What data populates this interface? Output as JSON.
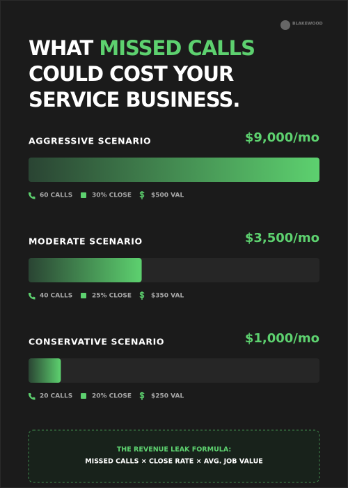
{
  "chart_data": {
    "type": "bar",
    "brand": "BLAKEWOOD",
    "title_parts": [
      "WHAT",
      "MISSED CALLS",
      "COULD COST YOUR",
      "SERVICE BUSINESS."
    ],
    "highlight_color": "#5dd16f",
    "categories": [
      "AGGRESSIVE SCENARIO",
      "MODERATE SCENARIO",
      "CONSERVATIVE SCENARIO"
    ],
    "values": [
      9000,
      3500,
      1000
    ],
    "value_labels": [
      "$9,000/mo",
      "$3,500/mo",
      "$1,000/mo"
    ],
    "color": "#5dd16f",
    "details": [
      [
        "60 CALLS",
        "30% CLOSE",
        "$500 VAL"
      ],
      [
        "40 CALLS",
        "25% CLOSE",
        "$350 VAL"
      ],
      [
        "20 CALLS",
        "20% CLOSE",
        "$250 VAL"
      ]
    ],
    "formula": {
      "title": "THE REVENUE LEAK FORMULA:",
      "text": "MISSED CALLS × CLOSE RATE × AVG. JOB VALUE"
    }
  }
}
